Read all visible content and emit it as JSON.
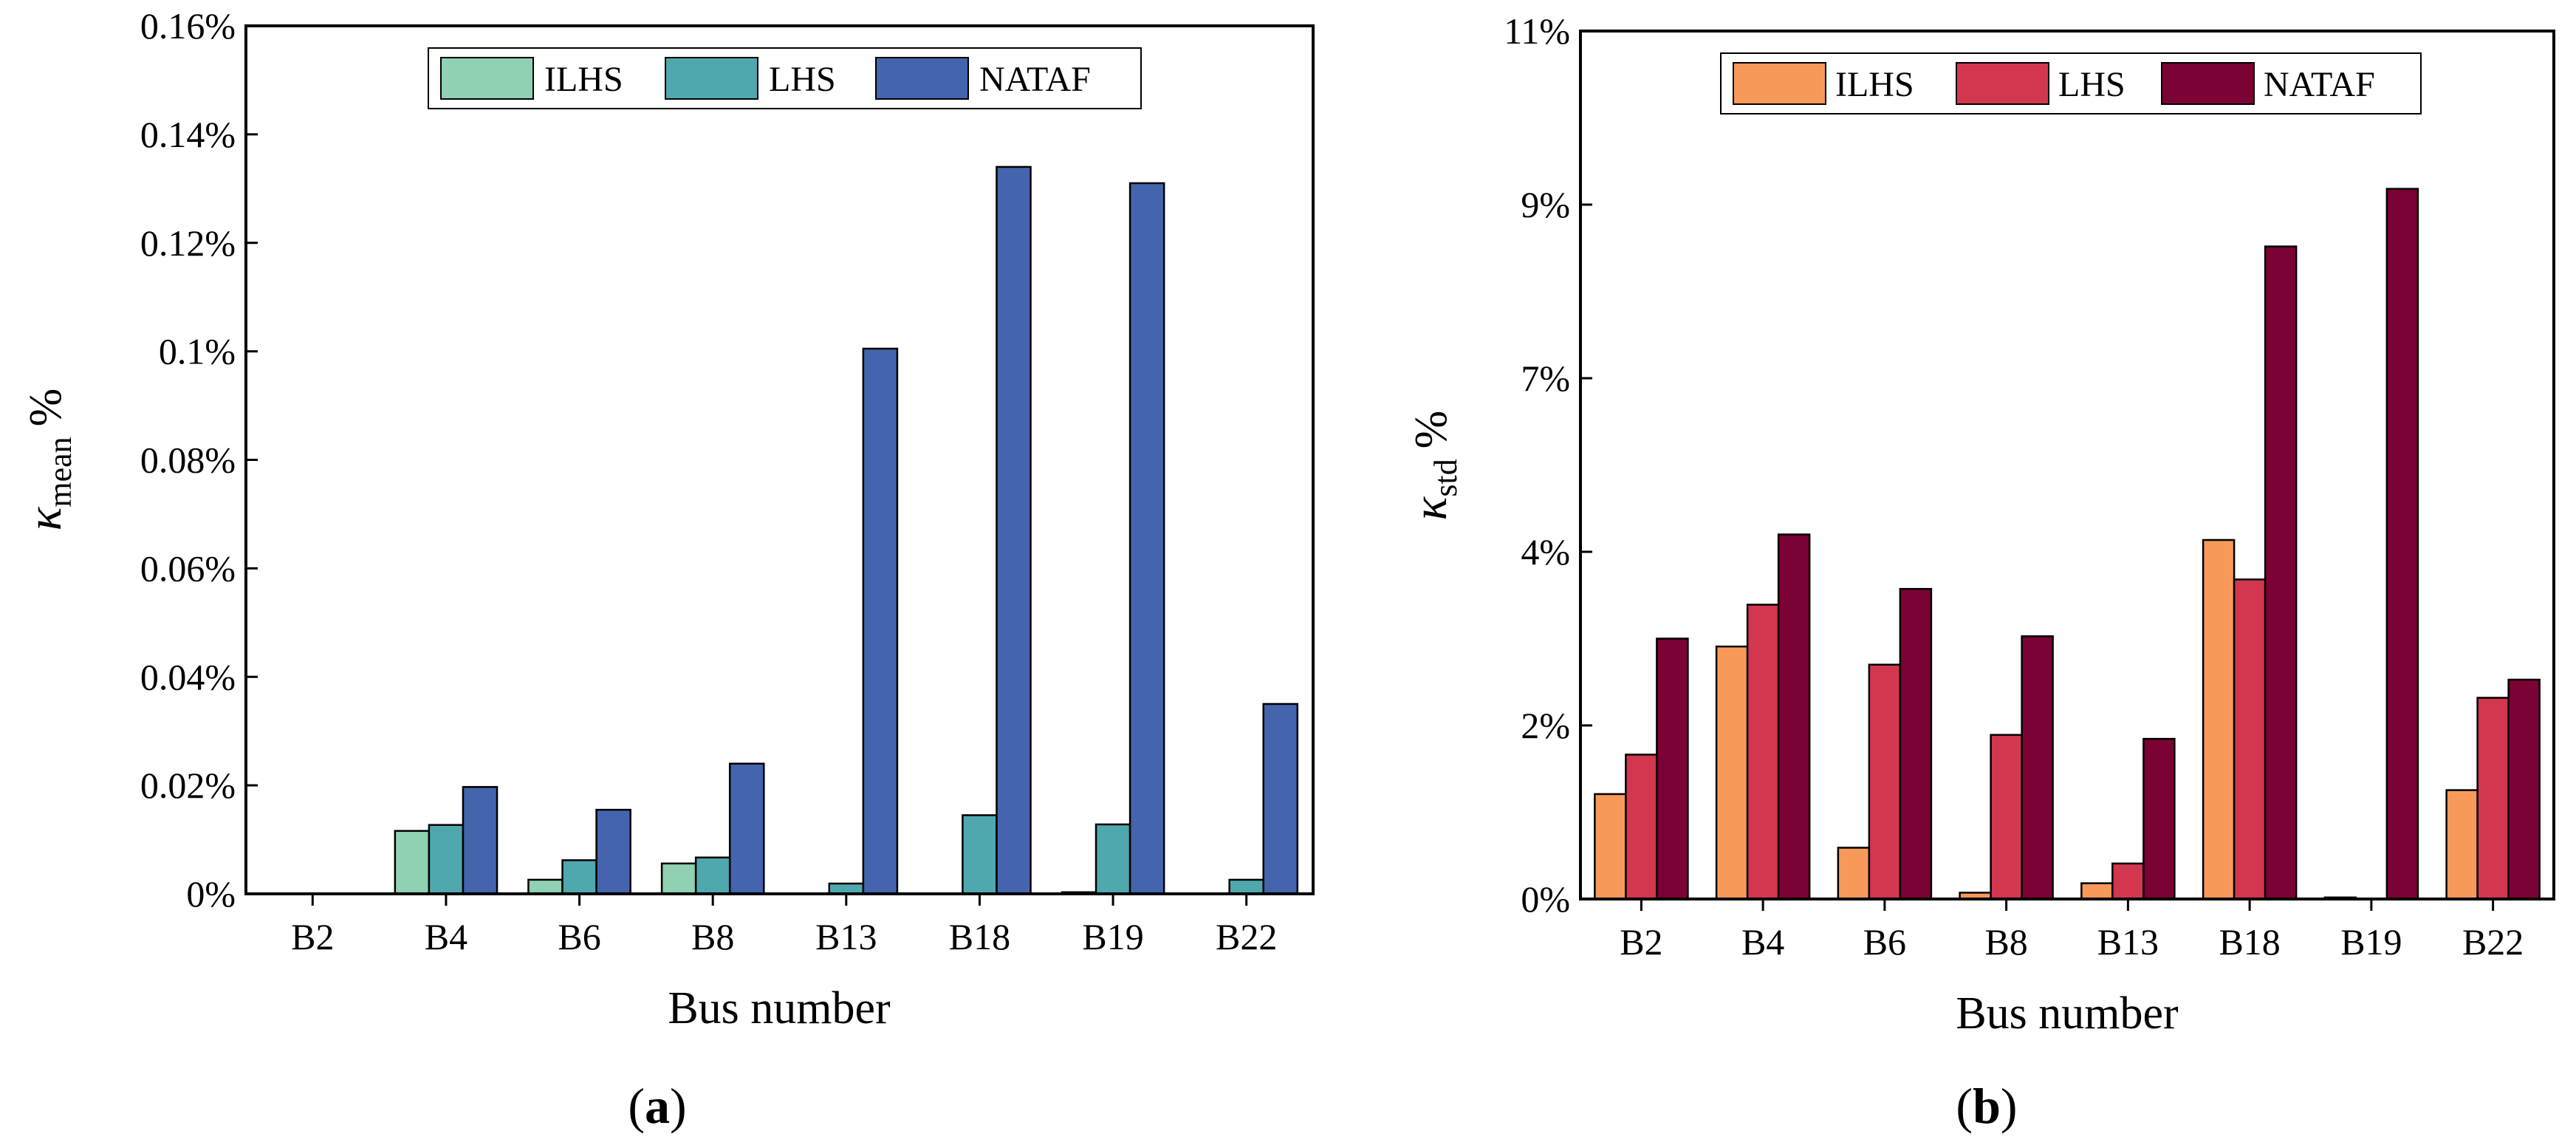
{
  "chart_data": [
    {
      "type": "bar",
      "panel": "(a)",
      "panel_letter": "a",
      "categories": [
        "B2",
        "B4",
        "B6",
        "B8",
        "B13",
        "B18",
        "B19",
        "B22"
      ],
      "series": [
        {
          "name": "ILHS",
          "color": "#8fd1b2",
          "values": [
            0,
            0.0116,
            0.0026,
            0.0056,
            0,
            0,
            0.0003,
            0
          ]
        },
        {
          "name": "LHS",
          "color": "#4ea8ae",
          "values": [
            0,
            0.0127,
            0.0062,
            0.0067,
            0.0019,
            0.0145,
            0.0128,
            0.0026
          ]
        },
        {
          "name": "NATAF",
          "color": "#4464ad",
          "values": [
            0,
            0.0197,
            0.0155,
            0.024,
            0.1005,
            0.134,
            0.131,
            0.035
          ]
        }
      ],
      "ylim": [
        0,
        0.16
      ],
      "yticks": [
        0,
        0.02,
        0.04,
        0.06,
        0.08,
        0.1,
        0.12,
        0.14,
        0.16
      ],
      "ytick_labels": [
        "0%",
        "0.02%",
        "0.04%",
        "0.06%",
        "0.08%",
        "0.1%",
        "0.12%",
        "0.14%",
        "0.16%"
      ],
      "xlabel": "Bus number",
      "ylabel_symbol": "κ",
      "ylabel_subscript": "mean",
      "ylabel_unit": "%",
      "legend_position": "top-center"
    },
    {
      "type": "bar",
      "panel": "(b)",
      "panel_letter": "b",
      "categories": [
        "B2",
        "B4",
        "B6",
        "B8",
        "B13",
        "B18",
        "B19",
        "B22"
      ],
      "series": [
        {
          "name": "ILHS",
          "color": "#f79a59",
          "values": [
            1.33,
            3.2,
            0.65,
            0.08,
            0.2,
            4.55,
            0.02,
            1.38
          ]
        },
        {
          "name": "LHS",
          "color": "#d2374f",
          "values": [
            1.83,
            3.73,
            2.97,
            2.08,
            0.45,
            4.05,
            0,
            2.55
          ]
        },
        {
          "name": "NATAF",
          "color": "#7b0234",
          "values": [
            3.3,
            4.62,
            3.93,
            3.33,
            2.03,
            8.27,
            9.0,
            2.78
          ]
        }
      ],
      "ylim": [
        0,
        11
      ],
      "yticks": [
        0,
        2.2,
        4.4,
        6.6,
        8.8,
        11
      ],
      "ytick_labels": [
        "0%",
        "2%",
        "4%",
        "7%",
        "9%",
        "11%"
      ],
      "xlabel": "Bus number",
      "ylabel_symbol": "κ",
      "ylabel_subscript": "std",
      "ylabel_unit": "%",
      "legend_position": "top-center"
    }
  ]
}
